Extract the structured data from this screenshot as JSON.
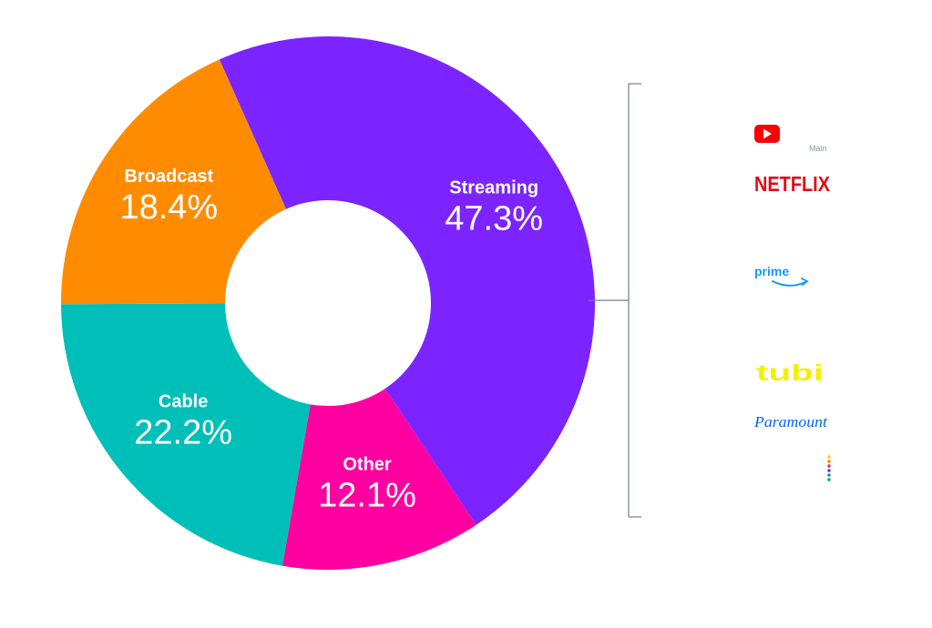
{
  "chart_data": {
    "type": "pie",
    "style": "donut",
    "slices": [
      {
        "label": "Streaming",
        "value": 47.3,
        "display": "47.3%",
        "color": "#7B24FF"
      },
      {
        "label": "Other",
        "value": 12.1,
        "display": "12.1%",
        "color": "#FF00A1"
      },
      {
        "label": "Cable",
        "value": 22.2,
        "display": "22.2%",
        "color": "#00BFB8"
      },
      {
        "label": "Broadcast",
        "value": 18.4,
        "display": "18.4%",
        "color": "#FF8C00"
      }
    ],
    "title": "",
    "legend": "none",
    "breakdown_bracket": {
      "attached_to": "Streaming",
      "bracket_color": "#6E8092",
      "note": "Main",
      "logos": [
        {
          "name": "YouTube",
          "icon": "youtube-logo",
          "color": "#FF0000"
        },
        {
          "name": "NETFLIX",
          "icon": "netflix-logo",
          "color": "#E50914"
        },
        {
          "name": "prime",
          "icon": "prime-video-logo",
          "color": "#1399FF"
        },
        {
          "name": "tubi",
          "icon": "tubi-logo",
          "color": "#F2F200"
        },
        {
          "name": "Paramount",
          "icon": "paramount-logo",
          "color": "#0064FF"
        },
        {
          "name": "peacock",
          "icon": "peacock-logo",
          "color": "#7B2BC4"
        }
      ]
    }
  }
}
